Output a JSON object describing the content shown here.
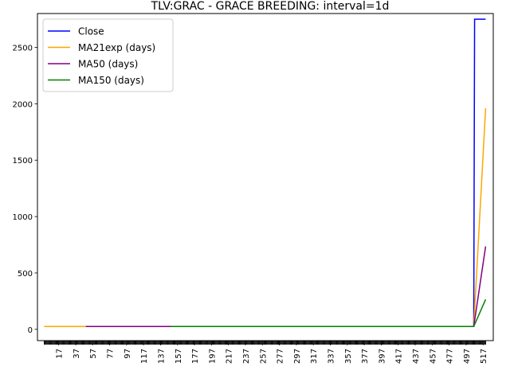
{
  "chart_data": {
    "type": "line",
    "title": "TLV:GRAC - GRACE BREEDING: interval=1d",
    "xlabel": "",
    "ylabel": "",
    "xlim": [
      -8,
      529
    ],
    "ylim": [
      -100,
      2800
    ],
    "yticks": [
      0,
      500,
      1000,
      1500,
      2000,
      2500
    ],
    "xticks": [
      17,
      37,
      57,
      77,
      97,
      117,
      137,
      157,
      177,
      197,
      217,
      237,
      257,
      277,
      297,
      317,
      337,
      357,
      377,
      397,
      417,
      437,
      457,
      477,
      497,
      517
    ],
    "x_minor_ticks_from": 0,
    "x_minor_ticks_to": 520,
    "legend_position": "top-left",
    "grid": false,
    "series": [
      {
        "name": "Close",
        "color": "#0000ff",
        "points": [
          [
            0,
            25
          ],
          [
            506,
            25
          ],
          [
            507,
            2750
          ],
          [
            520,
            2750
          ]
        ]
      },
      {
        "name": "MA21exp (days)",
        "color": "#ffa500",
        "points": [
          [
            0,
            25
          ],
          [
            506,
            25
          ],
          [
            520,
            1960
          ]
        ]
      },
      {
        "name": "MA50 (days)",
        "color": "#800080",
        "points": [
          [
            49,
            25
          ],
          [
            506,
            25
          ],
          [
            520,
            735
          ]
        ]
      },
      {
        "name": "MA150 (days)",
        "color": "#008000",
        "points": [
          [
            149,
            25
          ],
          [
            506,
            25
          ],
          [
            520,
            265
          ]
        ]
      }
    ]
  }
}
